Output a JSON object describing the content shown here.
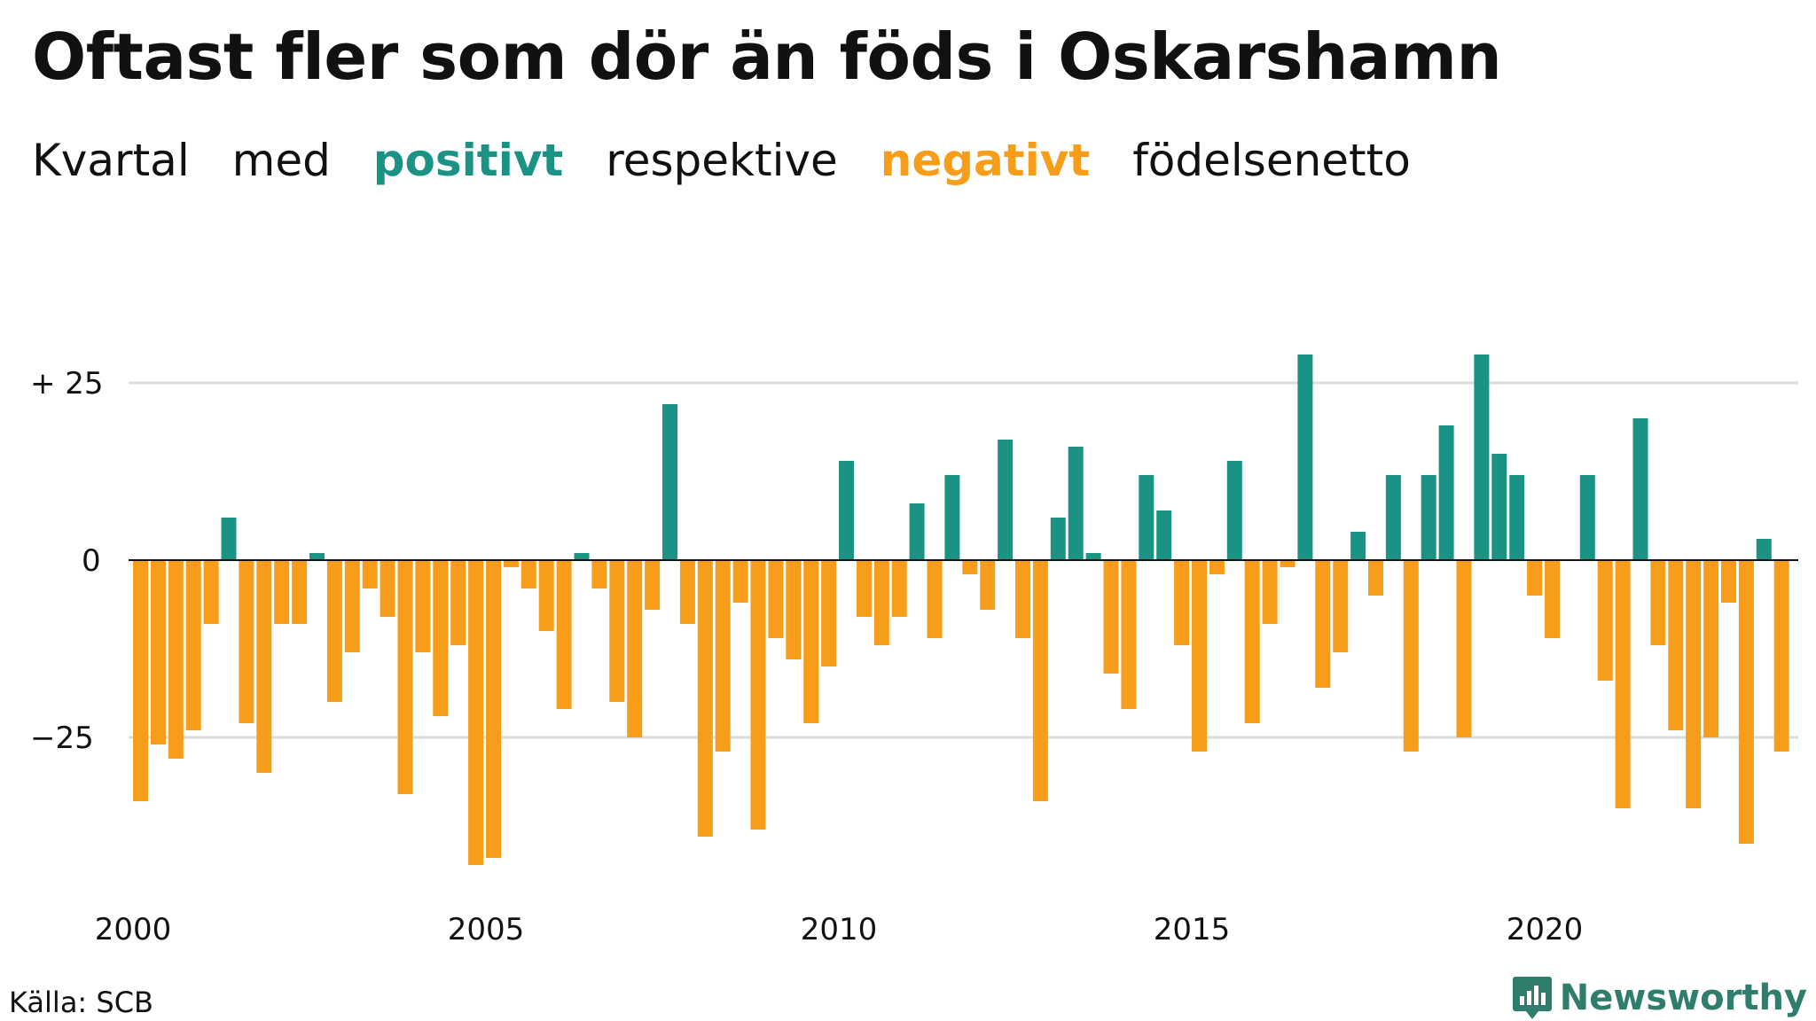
{
  "title": "Oftast fler som dör än föds i Oskarshamn",
  "subtitle": {
    "w1": "Kvartal",
    "w2": "med",
    "positive": "positivt",
    "w3": "respektive",
    "negative": "negativt",
    "w4": "födelsenetto"
  },
  "source": "Källa: SCB",
  "logo": {
    "name": "Newsworthy",
    "icon": "newsworthy-logo-icon"
  },
  "colors": {
    "positive": "#1a9385",
    "negative": "#f79d1a",
    "zero_line": "#111111",
    "grid": "#dddddd"
  },
  "chart_data": {
    "type": "bar",
    "start_year": 2000,
    "quarters_per_year": 4,
    "ylim": [
      -45,
      30
    ],
    "y_ticks": [
      {
        "value": 25,
        "label": "+ 25"
      },
      {
        "value": -25,
        "label": "−25"
      }
    ],
    "x_ticks": [
      {
        "value": 2000,
        "label": "2000"
      },
      {
        "value": 2005,
        "label": "2005"
      },
      {
        "value": 2010,
        "label": "2010"
      },
      {
        "value": 2015,
        "label": "2015"
      },
      {
        "value": 2020,
        "label": "2020"
      }
    ],
    "grid": true,
    "values": [
      -34,
      -26,
      -28,
      -24,
      -9,
      6,
      -23,
      -30,
      -9,
      -9,
      1,
      -20,
      -13,
      -4,
      -8,
      -33,
      -13,
      -22,
      -12,
      -43,
      -42,
      -1,
      -4,
      -10,
      -21,
      1,
      -4,
      -20,
      -25,
      -7,
      22,
      -9,
      -39,
      -27,
      -6,
      -38,
      -11,
      -14,
      -23,
      -15,
      14,
      -8,
      -12,
      -8,
      8,
      -11,
      12,
      -2,
      -7,
      17,
      -11,
      -34,
      6,
      16,
      1,
      -16,
      -21,
      12,
      7,
      -12,
      -27,
      -2,
      14,
      -23,
      -9,
      -1,
      29,
      -18,
      -13,
      4,
      -5,
      12,
      -27,
      12,
      19,
      -25,
      29,
      15,
      12,
      -5,
      -11,
      0,
      12,
      -17,
      -35,
      20,
      -12,
      -24,
      -35,
      -25,
      -6,
      -40,
      3,
      -27
    ]
  }
}
